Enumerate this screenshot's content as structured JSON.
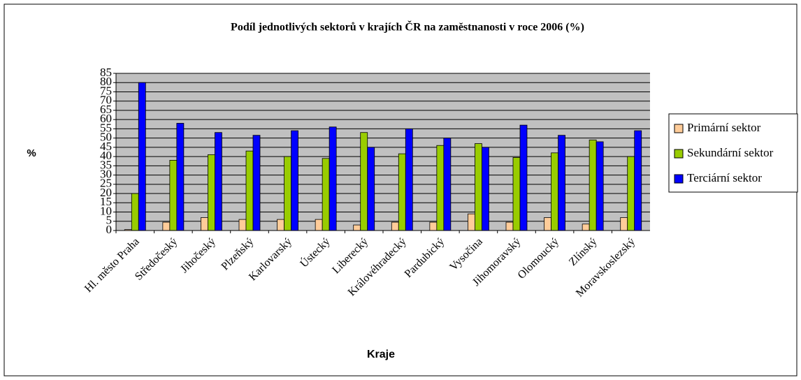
{
  "chart_data": {
    "type": "bar",
    "title": "Podíl jednotlivých sektorů v krajích ČR na zaměstnanosti v roce 2006 (%)",
    "xlabel": "Kraje",
    "ylabel": "%",
    "categories": [
      "Hl. město Praha",
      "Středočeský",
      "Jihočeský",
      "Plzeňský",
      "Karlovarský",
      "Ústecký",
      "Liberecký",
      "Královéhradecký",
      "Pardubický",
      "Vysočina",
      "Jihomoravský",
      "Olomoucký",
      "Zlínský",
      "Moravskoslezský"
    ],
    "series": [
      {
        "name": "Primární sektor",
        "color": "#ffcc99",
        "values": [
          0.5,
          4.5,
          7,
          6,
          6,
          6,
          3,
          4.5,
          4.5,
          9,
          4.5,
          7,
          3.5,
          7
        ]
      },
      {
        "name": "Sekundární sektor",
        "color": "#99cc00",
        "values": [
          20,
          38,
          41,
          43,
          40,
          39,
          53,
          41.5,
          46,
          47,
          39.5,
          42,
          49,
          40
        ]
      },
      {
        "name": "Terciární sektor",
        "color": "#0000ff",
        "values": [
          80,
          58,
          53,
          51.5,
          54,
          56,
          45,
          55,
          50,
          45,
          57,
          51.5,
          48,
          54
        ]
      }
    ],
    "ylim": [
      0,
      85
    ],
    "yticks": [
      0,
      5,
      10,
      15,
      20,
      25,
      30,
      35,
      40,
      45,
      50,
      55,
      60,
      65,
      70,
      75,
      80,
      85
    ],
    "grid": true,
    "legend": "right"
  }
}
